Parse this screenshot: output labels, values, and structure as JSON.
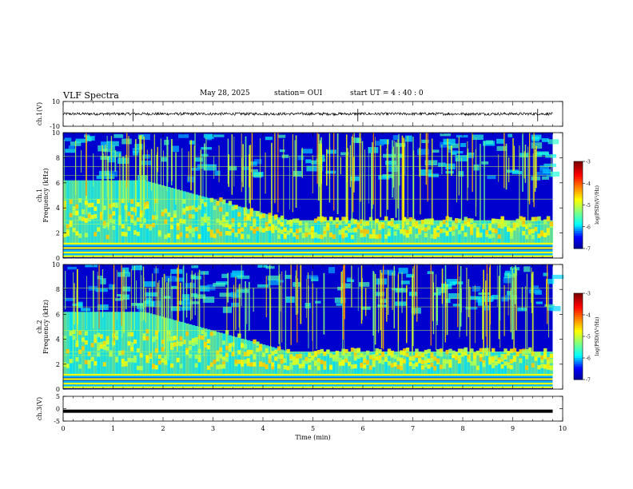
{
  "header": {
    "title": "VLF Spectra",
    "date": "May 28, 2025",
    "station": "station= OUI",
    "start_ut": "start UT =  4 : 40 : 0"
  },
  "chart_data": [
    {
      "type": "line",
      "panel": "ch1-waveform",
      "ylabel": "ch.1(V)",
      "ylim": [
        -10,
        10
      ],
      "yticks": [
        "10",
        "-10"
      ],
      "x_range_min": [
        0,
        9.8
      ],
      "series": [
        {
          "values_note": "noisy signal centered near 0 V, amplitude about 1 V, spikes near 1.4, 5.9 and 9.5 min",
          "center": 0,
          "spikes_min": [
            1.4,
            5.9,
            9.5
          ]
        }
      ]
    },
    {
      "type": "heatmap",
      "panel": "ch1-spectrogram",
      "ylabel": "ch.1\nFrequency (kHz)",
      "ylim": [
        0,
        10
      ],
      "yticks": [
        "0",
        "2",
        "4",
        "6",
        "8",
        "10"
      ],
      "xlim": [
        0,
        9.8
      ],
      "colorbar": {
        "label": "log(PSD)(V²/Hz)",
        "ticks": [
          "-3",
          "-4",
          "-5",
          "-6",
          "-7"
        ],
        "range": [
          -7,
          -3
        ]
      },
      "features": {
        "strong_band_khz": [
          0.0,
          1.2
        ],
        "chorus_band_khz": [
          1.5,
          4.5
        ],
        "hiss_upper_edge_khz_start": 6.2,
        "hiss_upper_edge_khz_end": 3.0,
        "dark_gap_khz": [
          4.5,
          6.5
        ],
        "broadband_impulses": "vertical streaks 2-10 kHz throughout"
      }
    },
    {
      "type": "heatmap",
      "panel": "ch2-spectrogram",
      "ylabel": "ch.2\nFrequency (kHz)",
      "ylim": [
        0,
        10
      ],
      "yticks": [
        "0",
        "2",
        "4",
        "6",
        "8",
        "10"
      ],
      "xlim": [
        0,
        9.8
      ],
      "colorbar": {
        "label": "log(PSD)(V²/Hz)",
        "ticks": [
          "-3",
          "-4",
          "-5",
          "-6",
          "-7"
        ],
        "range": [
          -7,
          -3
        ]
      },
      "features": {
        "strong_band_khz": [
          0.0,
          1.2
        ],
        "chorus_band_khz": [
          1.5,
          4.5
        ],
        "hiss_upper_edge_khz_start": 6.2,
        "hiss_upper_edge_khz_end": 3.0,
        "dark_gap_khz": [
          4.5,
          6.5
        ],
        "broadband_impulses": "vertical streaks 2-10 kHz throughout"
      }
    },
    {
      "type": "line",
      "panel": "ch3-waveform",
      "ylabel": "ch.3(V)",
      "ylim": [
        -5,
        5
      ],
      "yticks": [
        "5",
        "0",
        "-5"
      ],
      "x_range_min": [
        0,
        9.8
      ],
      "series": [
        {
          "values_note": "constant level near -1 V",
          "level": -1
        }
      ]
    }
  ],
  "xaxis": {
    "label": "Time (min)",
    "ticks": [
      "0",
      "1",
      "2",
      "3",
      "4",
      "5",
      "6",
      "7",
      "8",
      "9",
      "10"
    ],
    "xlim": [
      0,
      10
    ]
  },
  "colors": {
    "jet": [
      "#00008f",
      "#0000ff",
      "#00ffff",
      "#80ff80",
      "#ffff00",
      "#ff8000",
      "#ff0000",
      "#800000"
    ]
  }
}
